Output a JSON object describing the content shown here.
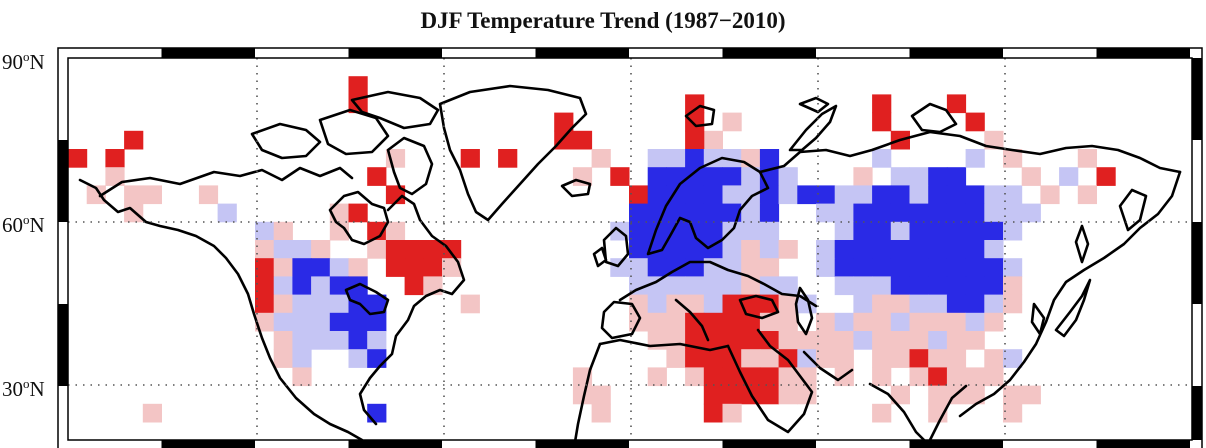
{
  "title": "DJF Temperature Trend (1987−2010)",
  "latitude_labels": [
    {
      "deg": "90",
      "sup": "o",
      "hemi": "N"
    },
    {
      "deg": "60",
      "sup": "o",
      "hemi": "N"
    },
    {
      "deg": "30",
      "sup": "o",
      "hemi": "N"
    }
  ],
  "colors": {
    "warming_strong": "#e02020",
    "warming_light": "#f3c5c5",
    "cooling_strong": "#2a2ae6",
    "cooling_light": "#c5c5f4",
    "coast": "#000000",
    "grid": "#666666"
  }
}
